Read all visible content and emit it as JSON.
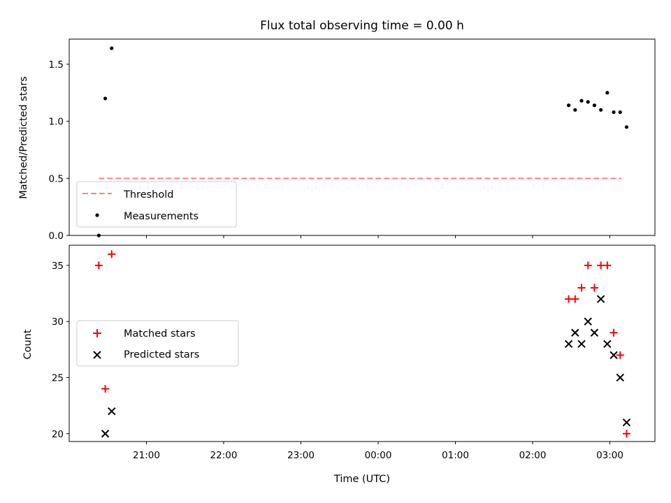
{
  "chart_data": [
    {
      "type": "scatter",
      "title": "Flux total observing time = 0.00 h",
      "xlabel": "",
      "ylabel": "Matched/Predicted stars",
      "ylim": [
        0.0,
        1.72
      ],
      "yticks": [
        "0.0",
        "0.5",
        "1.0",
        "1.5"
      ],
      "legend_position": "lower-left",
      "threshold": {
        "name": "Threshold",
        "value": 0.5,
        "x_start": "20:23",
        "x_end": "03:09",
        "color": "#ff7f7f",
        "style": "dashed"
      },
      "series": [
        {
          "name": "Measurements",
          "color": "#000000",
          "marker": "dot",
          "points": [
            {
              "x": "20:23",
              "y": 0.0
            },
            {
              "x": "20:28",
              "y": 1.2
            },
            {
              "x": "20:33",
              "y": 1.64
            },
            {
              "x": "02:28",
              "y": 1.14
            },
            {
              "x": "02:33",
              "y": 1.1
            },
            {
              "x": "02:38",
              "y": 1.18
            },
            {
              "x": "02:43",
              "y": 1.17
            },
            {
              "x": "02:48",
              "y": 1.14
            },
            {
              "x": "02:53",
              "y": 1.1
            },
            {
              "x": "02:58",
              "y": 1.25
            },
            {
              "x": "03:03",
              "y": 1.08
            },
            {
              "x": "03:08",
              "y": 1.08
            },
            {
              "x": "03:13",
              "y": 0.95
            }
          ]
        }
      ]
    },
    {
      "type": "scatter",
      "title": "",
      "xlabel": "Time (UTC)",
      "ylabel": "Count",
      "ylim": [
        19.3,
        36.8
      ],
      "yticks": [
        "20",
        "25",
        "30",
        "35"
      ],
      "xticks": [
        "21:00",
        "22:00",
        "23:00",
        "00:00",
        "01:00",
        "02:00",
        "03:00"
      ],
      "legend_position": "center-left",
      "series": [
        {
          "name": "Matched stars",
          "color": "#ff0000",
          "marker": "plus",
          "points": [
            {
              "x": "20:23",
              "y": 35
            },
            {
              "x": "20:28",
              "y": 24
            },
            {
              "x": "20:33",
              "y": 36
            },
            {
              "x": "02:28",
              "y": 32
            },
            {
              "x": "02:33",
              "y": 32
            },
            {
              "x": "02:38",
              "y": 33
            },
            {
              "x": "02:43",
              "y": 35
            },
            {
              "x": "02:48",
              "y": 33
            },
            {
              "x": "02:53",
              "y": 35
            },
            {
              "x": "02:58",
              "y": 35
            },
            {
              "x": "03:03",
              "y": 29
            },
            {
              "x": "03:08",
              "y": 27
            },
            {
              "x": "03:13",
              "y": 20
            }
          ]
        },
        {
          "name": "Predicted stars",
          "color": "#000000",
          "marker": "x",
          "points": [
            {
              "x": "20:28",
              "y": 20
            },
            {
              "x": "20:33",
              "y": 22
            },
            {
              "x": "02:28",
              "y": 28
            },
            {
              "x": "02:33",
              "y": 29
            },
            {
              "x": "02:38",
              "y": 28
            },
            {
              "x": "02:43",
              "y": 30
            },
            {
              "x": "02:48",
              "y": 29
            },
            {
              "x": "02:53",
              "y": 32
            },
            {
              "x": "02:58",
              "y": 28
            },
            {
              "x": "03:03",
              "y": 27
            },
            {
              "x": "03:08",
              "y": 25
            },
            {
              "x": "03:13",
              "y": 21
            }
          ]
        }
      ]
    }
  ]
}
